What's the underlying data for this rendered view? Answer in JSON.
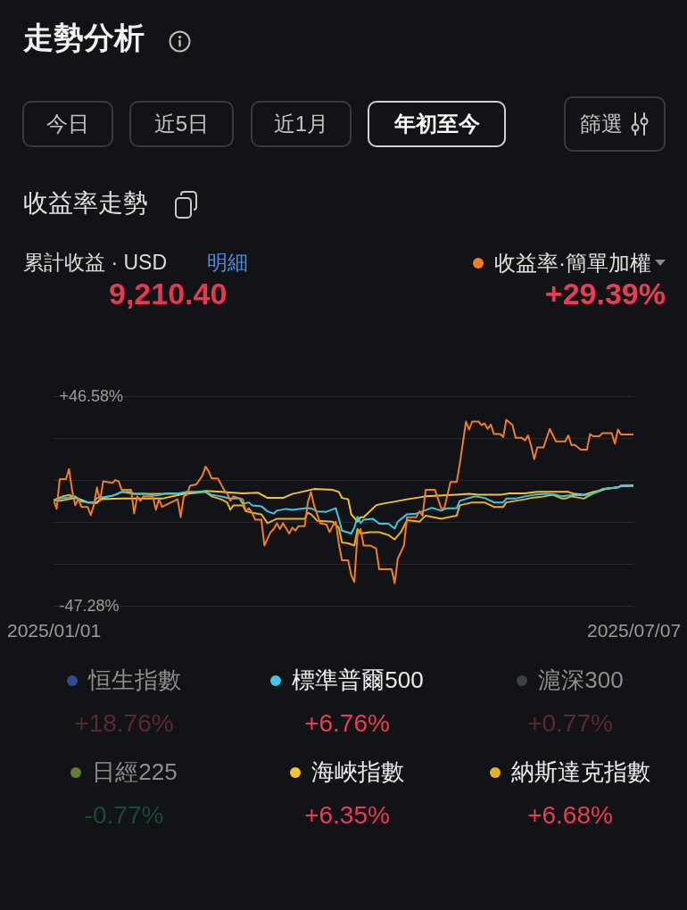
{
  "chart_data": {
    "type": "line",
    "title": "走勢分析",
    "subtitle": "收益率走勢",
    "annotations": [
      "今日",
      "近5日",
      "近1月",
      "年初至今",
      "篩選",
      "累計收益 · USD",
      "明細",
      "9,210.40",
      "+29.39%",
      "+18.76%",
      "+6.76%",
      "+0.77%",
      "-0.77%",
      "+6.35%",
      "+6.68%"
    ],
    "xlim": [
      "2025-01-01",
      "2025-07-07"
    ],
    "xticks": [
      {
        "value": "2025-01-01",
        "label": "2025/01/01"
      },
      {
        "value": "2025-07-07",
        "label": "2025/07/07"
      }
    ],
    "ylim": [
      -47.28,
      46.58
    ],
    "yticks": [
      {
        "value": -47.28,
        "label": "-47.28%"
      },
      {
        "value": -28.51,
        "label": null
      },
      {
        "value": -9.74,
        "label": null
      },
      {
        "value": 9.04,
        "label": null
      },
      {
        "value": 27.81,
        "label": null
      },
      {
        "value": 46.58,
        "label": "+46.58%"
      }
    ],
    "grid": "y",
    "legend": "bottom",
    "series": [
      {
        "name": "收益率·簡單加權",
        "color": "#f57c20",
        "x": [
          "2025-01-01",
          "2025-01-02",
          "2025-01-03",
          "2025-01-05",
          "2025-01-06",
          "2025-01-07",
          "2025-01-08",
          "2025-01-09",
          "2025-01-10",
          "2025-01-12",
          "2025-01-13",
          "2025-01-14",
          "2025-01-15",
          "2025-01-16",
          "2025-01-17",
          "2025-01-20",
          "2025-01-21",
          "2025-01-22",
          "2025-01-23",
          "2025-01-26",
          "2025-01-27",
          "2025-01-28",
          "2025-01-29",
          "2025-01-30",
          "2025-02-02",
          "2025-02-03",
          "2025-02-04",
          "2025-02-05",
          "2025-02-07",
          "2025-02-09",
          "2025-02-10",
          "2025-02-11",
          "2025-02-12",
          "2025-02-13",
          "2025-02-14",
          "2025-02-16",
          "2025-02-18",
          "2025-02-19",
          "2025-02-20",
          "2025-02-21",
          "2025-02-23",
          "2025-02-25",
          "2025-02-26",
          "2025-02-27",
          "2025-02-28",
          "2025-03-03",
          "2025-03-04",
          "2025-03-05",
          "2025-03-06",
          "2025-03-07",
          "2025-03-09",
          "2025-03-10",
          "2025-03-12",
          "2025-03-13",
          "2025-03-14",
          "2025-03-15",
          "2025-03-16",
          "2025-03-18",
          "2025-03-19",
          "2025-03-20",
          "2025-03-21",
          "2025-03-23",
          "2025-03-24",
          "2025-03-25",
          "2025-03-26",
          "2025-03-28",
          "2025-03-30",
          "2025-03-31",
          "2025-04-01",
          "2025-04-02",
          "2025-04-03",
          "2025-04-04",
          "2025-04-06",
          "2025-04-07",
          "2025-04-08",
          "2025-04-09",
          "2025-04-10",
          "2025-04-11",
          "2025-04-13",
          "2025-04-15",
          "2025-04-16",
          "2025-04-20",
          "2025-04-21",
          "2025-04-22",
          "2025-04-24",
          "2025-04-25",
          "2025-04-28",
          "2025-04-29",
          "2025-04-30",
          "2025-05-01",
          "2025-05-04",
          "2025-05-06",
          "2025-05-07",
          "2025-05-09",
          "2025-05-11",
          "2025-05-12",
          "2025-05-14",
          "2025-05-15",
          "2025-05-16",
          "2025-05-18",
          "2025-05-19",
          "2025-05-20",
          "2025-05-21",
          "2025-05-22",
          "2025-05-23",
          "2025-05-25",
          "2025-05-26",
          "2025-05-27",
          "2025-05-29",
          "2025-05-30",
          "2025-06-01",
          "2025-06-02",
          "2025-06-03",
          "2025-06-04",
          "2025-06-05",
          "2025-06-06",
          "2025-06-08",
          "2025-06-10",
          "2025-06-12",
          "2025-06-15",
          "2025-06-16",
          "2025-06-17",
          "2025-06-18",
          "2025-06-20",
          "2025-06-22",
          "2025-06-23",
          "2025-06-24",
          "2025-06-26",
          "2025-06-27",
          "2025-06-30",
          "2025-07-01",
          "2025-07-02",
          "2025-07-03",
          "2025-07-07"
        ],
        "values": [
          0,
          -3.9,
          9.4,
          9.4,
          13.9,
          4.4,
          -2.3,
          0.6,
          -3.0,
          -3.0,
          -6.7,
          -2.3,
          5.7,
          -0.3,
          8.4,
          7.7,
          9.0,
          8.4,
          4.6,
          4.6,
          -5.9,
          1.7,
          -0.3,
          1.7,
          1.7,
          -4.3,
          0.4,
          -3.0,
          -1.6,
          -0.3,
          0.4,
          -7.6,
          1.7,
          2.4,
          6.4,
          7.0,
          11.0,
          15.0,
          13.0,
          9.7,
          9.7,
          4.6,
          3.0,
          -0.3,
          1.7,
          0.4,
          -5.0,
          -3.6,
          -5.6,
          -8.7,
          -8.7,
          -20.3,
          -14.3,
          -12.9,
          -10.3,
          -12.9,
          -10.3,
          -14.9,
          -12.3,
          -13.6,
          -11.6,
          -11.6,
          -1.0,
          3.7,
          -2.3,
          -10.3,
          -10.9,
          -14.3,
          -11.6,
          -9.6,
          -19.6,
          -26.9,
          -26.9,
          -33.6,
          -36.6,
          -15.6,
          -12.9,
          -20.3,
          -20.3,
          -21.6,
          -30.9,
          -30.9,
          -37.2,
          -26.2,
          -20.3,
          -7.6,
          -7.6,
          -5.0,
          -7.0,
          4.6,
          4.6,
          -3.6,
          -3.6,
          8.1,
          8.1,
          16.3,
          35.2,
          31.6,
          35.2,
          35.2,
          33.6,
          34.3,
          31.9,
          33.9,
          29.6,
          29.6,
          28.3,
          36.0,
          33.6,
          27.9,
          27.9,
          26.7,
          29.0,
          24.3,
          18.3,
          23.6,
          23.6,
          31.9,
          26.3,
          26.3,
          29.0,
          24.6,
          24.8,
          22.6,
          22.6,
          29.6,
          28.6,
          28.6,
          30.0,
          30.0,
          25.3,
          31.6,
          29.4,
          29.39
        ]
      },
      {
        "name": "恒生指數",
        "color": "#2e4e94"
      },
      {
        "name": "標準普爾500",
        "color": "#3cc8e6",
        "x": [
          "2025-01-01",
          "2025-01-03",
          "2025-01-08",
          "2025-01-10",
          "2025-01-14",
          "2025-01-15",
          "2025-01-20",
          "2025-01-23",
          "2025-01-26",
          "2025-01-27",
          "2025-01-31",
          "2025-02-03",
          "2025-02-06",
          "2025-02-10",
          "2025-02-13",
          "2025-02-19",
          "2025-02-21",
          "2025-02-24",
          "2025-02-27",
          "2025-03-02",
          "2025-03-03",
          "2025-03-05",
          "2025-03-06",
          "2025-03-09",
          "2025-03-11",
          "2025-03-13",
          "2025-03-14",
          "2025-03-17",
          "2025-03-19",
          "2025-03-23",
          "2025-03-25",
          "2025-03-27",
          "2025-03-30",
          "2025-04-02",
          "2025-04-03",
          "2025-04-04",
          "2025-04-07",
          "2025-04-08",
          "2025-04-09",
          "2025-04-10",
          "2025-04-11",
          "2025-04-14",
          "2025-04-16",
          "2025-04-19",
          "2025-04-21",
          "2025-04-22",
          "2025-04-25",
          "2025-04-28",
          "2025-04-30",
          "2025-05-03",
          "2025-05-06",
          "2025-05-08",
          "2025-05-11",
          "2025-05-12",
          "2025-05-15",
          "2025-05-17",
          "2025-05-20",
          "2025-05-23",
          "2025-05-26",
          "2025-05-27",
          "2025-05-30",
          "2025-06-02",
          "2025-06-05",
          "2025-06-09",
          "2025-06-12",
          "2025-06-14",
          "2025-06-17",
          "2025-06-21",
          "2025-06-23",
          "2025-06-25",
          "2025-06-27",
          "2025-07-02",
          "2025-07-03",
          "2025-07-07"
        ],
        "values": [
          0,
          0.7,
          1.7,
          -0.7,
          -1,
          1,
          2,
          3.7,
          3.7,
          2.8,
          2.8,
          2,
          3,
          3,
          3.7,
          3.7,
          2.4,
          1.7,
          0.7,
          0.7,
          -1.6,
          -1,
          -2.3,
          -2.7,
          -5,
          -6,
          -4.7,
          -3.9,
          -4.3,
          -3.6,
          -3.6,
          -5,
          -5.2,
          -3.6,
          -8.3,
          -13.6,
          -14.9,
          -12.3,
          -7.4,
          -10.3,
          -8.7,
          -8.3,
          -10.5,
          -10.5,
          -12.7,
          -9.6,
          -6.3,
          -6,
          -5,
          -3.4,
          -4.7,
          -3.6,
          -3.6,
          -0.3,
          1,
          1.7,
          1,
          -1,
          -1,
          0.7,
          0.7,
          1.7,
          2.4,
          2.8,
          2.4,
          1.7,
          2.2,
          2.2,
          2.4,
          3.7,
          5,
          5.7,
          6.6,
          6.76
        ]
      },
      {
        "name": "滬深300",
        "color": "#3c4049"
      },
      {
        "name": "日經225",
        "color": "#637d33"
      },
      {
        "name": "海峽指數",
        "color": "#f5c42a",
        "x": [
          "2025-01-01",
          "2025-01-03",
          "2025-01-08",
          "2025-01-12",
          "2025-01-15",
          "2025-01-16",
          "2025-01-23",
          "2025-02-05",
          "2025-02-12",
          "2025-02-19",
          "2025-02-24",
          "2025-03-03",
          "2025-03-08",
          "2025-03-11",
          "2025-03-16",
          "2025-03-19",
          "2025-03-22",
          "2025-03-26",
          "2025-04-01",
          "2025-04-03",
          "2025-04-04",
          "2025-04-06",
          "2025-04-07",
          "2025-04-09",
          "2025-04-10",
          "2025-04-11",
          "2025-04-15",
          "2025-04-17",
          "2025-04-20",
          "2025-04-25",
          "2025-05-01",
          "2025-05-08",
          "2025-05-15",
          "2025-05-18",
          "2025-05-25",
          "2025-05-28",
          "2025-06-02",
          "2025-06-06",
          "2025-06-16",
          "2025-06-18",
          "2025-06-21",
          "2025-06-24",
          "2025-06-28",
          "2025-07-02",
          "2025-07-03",
          "2025-07-07"
        ],
        "values": [
          0,
          -0.3,
          1,
          -1,
          -1.2,
          0.4,
          0.7,
          0.7,
          2.8,
          4.1,
          3.7,
          3,
          3.3,
          1,
          1,
          2.8,
          3.7,
          5,
          4.6,
          3.7,
          1,
          0.4,
          -6.3,
          -9.6,
          -7.6,
          -7.6,
          -2.3,
          -1.6,
          -0.9,
          0.4,
          1.7,
          2.2,
          2.8,
          2.4,
          2.4,
          3,
          3,
          3.7,
          3.7,
          2.8,
          2.4,
          3.7,
          5,
          5.7,
          6.3,
          6.35
        ]
      },
      {
        "name": "納斯達克指數",
        "color": "#e9b11c",
        "x": [
          "2025-01-01",
          "2025-01-04",
          "2025-01-06",
          "2025-01-09",
          "2025-01-12",
          "2025-01-15",
          "2025-01-17",
          "2025-01-21",
          "2025-01-23",
          "2025-01-27",
          "2025-02-13",
          "2025-02-19",
          "2025-02-21",
          "2025-02-24",
          "2025-02-26",
          "2025-02-27",
          "2025-02-28",
          "2025-03-03",
          "2025-03-04",
          "2025-03-06",
          "2025-03-09",
          "2025-03-11",
          "2025-03-14",
          "2025-03-23",
          "2025-03-24",
          "2025-03-25",
          "2025-03-27",
          "2025-04-01",
          "2025-04-03",
          "2025-04-04",
          "2025-04-06",
          "2025-04-08",
          "2025-04-09",
          "2025-04-10",
          "2025-04-13",
          "2025-04-16",
          "2025-04-19",
          "2025-04-21",
          "2025-04-23",
          "2025-04-25",
          "2025-04-29",
          "2025-05-01",
          "2025-05-06",
          "2025-05-11",
          "2025-05-12",
          "2025-05-16",
          "2025-05-20",
          "2025-05-23",
          "2025-05-26",
          "2025-05-27",
          "2025-06-02",
          "2025-06-04",
          "2025-06-07",
          "2025-06-11",
          "2025-06-14",
          "2025-06-15",
          "2025-06-17",
          "2025-06-21",
          "2025-06-24",
          "2025-06-28",
          "2025-07-02",
          "2025-07-03",
          "2025-07-07"
        ],
        "values": [
          0,
          1.7,
          2.4,
          0.7,
          -1,
          -1,
          1,
          2.4,
          3.7,
          2.8,
          2.8,
          3.7,
          1.7,
          0.4,
          -1,
          -4.3,
          -2.3,
          -2.3,
          -5,
          -5.6,
          -6.3,
          -10.3,
          -8.3,
          -8.3,
          -5.6,
          -6.3,
          -9.2,
          -9.6,
          -12.3,
          -18.9,
          -19.3,
          -20.3,
          -12.9,
          -14.9,
          -14.3,
          -14.3,
          -15.6,
          -17.6,
          -14.3,
          -8.9,
          -9.6,
          -6.9,
          -8.3,
          -6.9,
          -2.3,
          -1,
          -1,
          -3,
          -3,
          -1,
          0.4,
          1,
          1.4,
          2.4,
          0.7,
          0.7,
          1.7,
          0.7,
          3,
          5,
          5.7,
          6.4,
          6.68
        ]
      }
    ]
  }
}
